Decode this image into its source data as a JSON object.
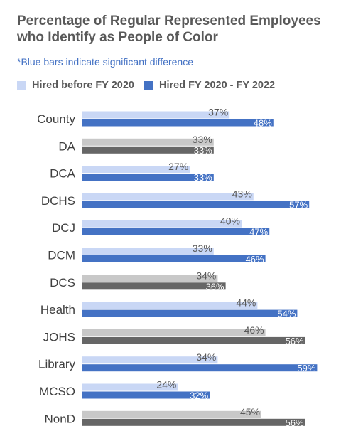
{
  "chart_data": {
    "type": "bar",
    "orientation": "horizontal",
    "title": "Percentage of Regular Represented Employees who Identify as People of Color",
    "subtitle": "*Blue bars indicate significant difference",
    "legend_position": "top-left",
    "categories": [
      "County",
      "DA",
      "DCA",
      "DCHS",
      "DCJ",
      "DCM",
      "DCS",
      "Health",
      "JOHS",
      "Library",
      "MCSO",
      "NonD"
    ],
    "series": [
      {
        "name": "Hired before FY 2020",
        "values": [
          37,
          33,
          27,
          43,
          40,
          33,
          34,
          44,
          46,
          34,
          24,
          45
        ]
      },
      {
        "name": "Hired FY 2020 - FY 2022",
        "values": [
          48,
          33,
          33,
          57,
          47,
          46,
          36,
          54,
          56,
          59,
          32,
          56
        ]
      }
    ],
    "significant": [
      true,
      false,
      true,
      true,
      true,
      true,
      false,
      true,
      false,
      true,
      true,
      false
    ],
    "value_suffix": "%",
    "xlim": [
      0,
      60
    ],
    "grid": false,
    "colors": {
      "significant_before": "#c9d7f5",
      "significant_after": "#4472c4",
      "not_significant_before": "#c8c8c8",
      "not_significant_after": "#666666",
      "label_before": "#595959",
      "label_after": "#ffffff",
      "category_text": "#404040"
    }
  }
}
